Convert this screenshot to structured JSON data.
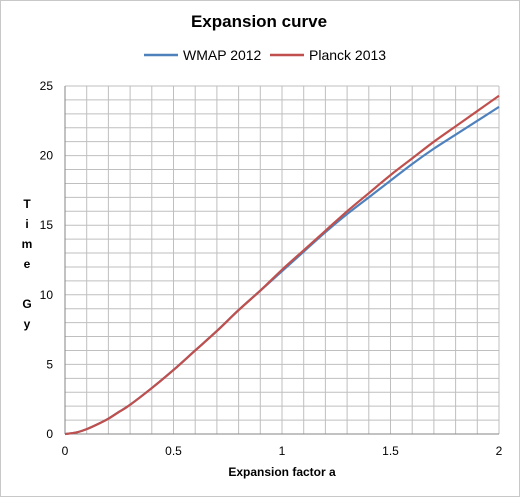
{
  "chart_data": {
    "type": "line",
    "title": "Expansion curve",
    "xlabel": "Expansion factor a",
    "ylabel": "Time Gy",
    "ylabel_lines": [
      "T",
      "i",
      "m",
      "e",
      "",
      "G",
      "y"
    ],
    "xlim": [
      0,
      2
    ],
    "ylim": [
      0,
      25
    ],
    "x_ticks": [
      0,
      0.5,
      1,
      1.5,
      2
    ],
    "x_tick_labels": [
      "0",
      "0.5",
      "1",
      "1.5",
      "2"
    ],
    "y_ticks": [
      0,
      5,
      10,
      15,
      20,
      25
    ],
    "y_tick_labels": [
      "0",
      "5",
      "10",
      "15",
      "20",
      "25"
    ],
    "grid": true,
    "legend_position": "top",
    "series": [
      {
        "name": "WMAP 2012",
        "color": "#4f81bd",
        "x": [
          0,
          0.05,
          0.1,
          0.15,
          0.2,
          0.25,
          0.3,
          0.4,
          0.5,
          0.6,
          0.7,
          0.8,
          0.9,
          1.0,
          1.1,
          1.2,
          1.3,
          1.4,
          1.5,
          1.6,
          1.7,
          1.8,
          1.9,
          2.0
        ],
        "y": [
          0,
          0.1,
          0.35,
          0.7,
          1.1,
          1.6,
          2.1,
          3.3,
          4.6,
          6.0,
          7.4,
          8.9,
          10.3,
          11.7,
          13.1,
          14.5,
          15.8,
          17.0,
          18.2,
          19.4,
          20.5,
          21.5,
          22.5,
          23.5
        ]
      },
      {
        "name": "Planck 2013",
        "color": "#c0504d",
        "x": [
          0,
          0.05,
          0.1,
          0.15,
          0.2,
          0.25,
          0.3,
          0.4,
          0.5,
          0.6,
          0.7,
          0.8,
          0.9,
          1.0,
          1.1,
          1.2,
          1.3,
          1.4,
          1.5,
          1.6,
          1.7,
          1.8,
          1.9,
          2.0
        ],
        "y": [
          0,
          0.1,
          0.35,
          0.7,
          1.1,
          1.6,
          2.1,
          3.3,
          4.6,
          6.0,
          7.4,
          8.9,
          10.3,
          11.8,
          13.2,
          14.6,
          16.0,
          17.3,
          18.6,
          19.8,
          21.0,
          22.1,
          23.2,
          24.3
        ]
      }
    ]
  }
}
